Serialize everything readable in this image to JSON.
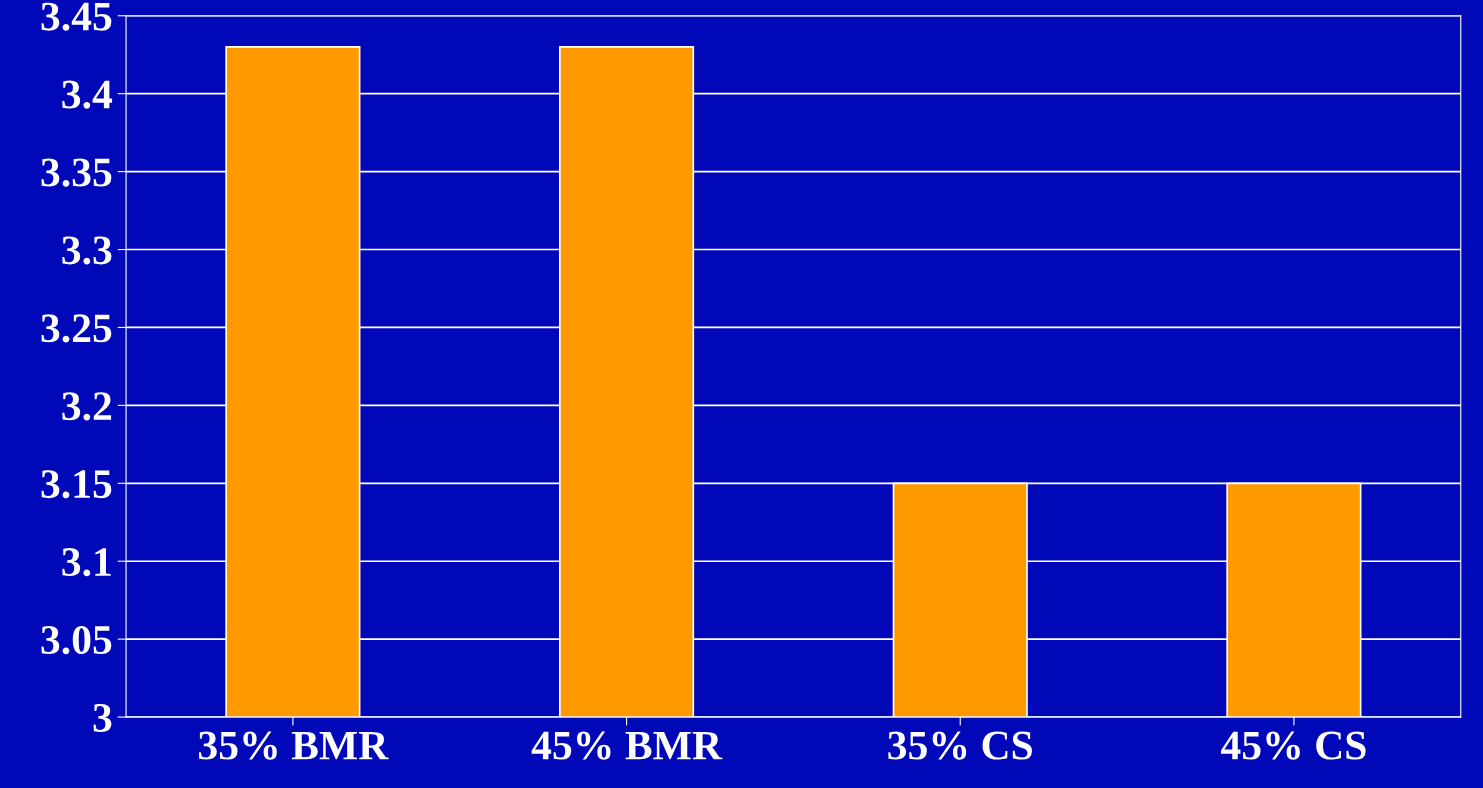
{
  "chart_data": {
    "type": "bar",
    "categories": [
      "35% BMR",
      "45% BMR",
      "35% CS",
      "45% CS"
    ],
    "values": [
      3.43,
      3.43,
      3.15,
      3.15
    ],
    "color": "#ff9900",
    "ylim": [
      3,
      3.45
    ],
    "yticks": [
      3,
      3.05,
      3.1,
      3.15,
      3.2,
      3.25,
      3.3,
      3.35,
      3.4,
      3.45
    ],
    "grid": "y"
  }
}
